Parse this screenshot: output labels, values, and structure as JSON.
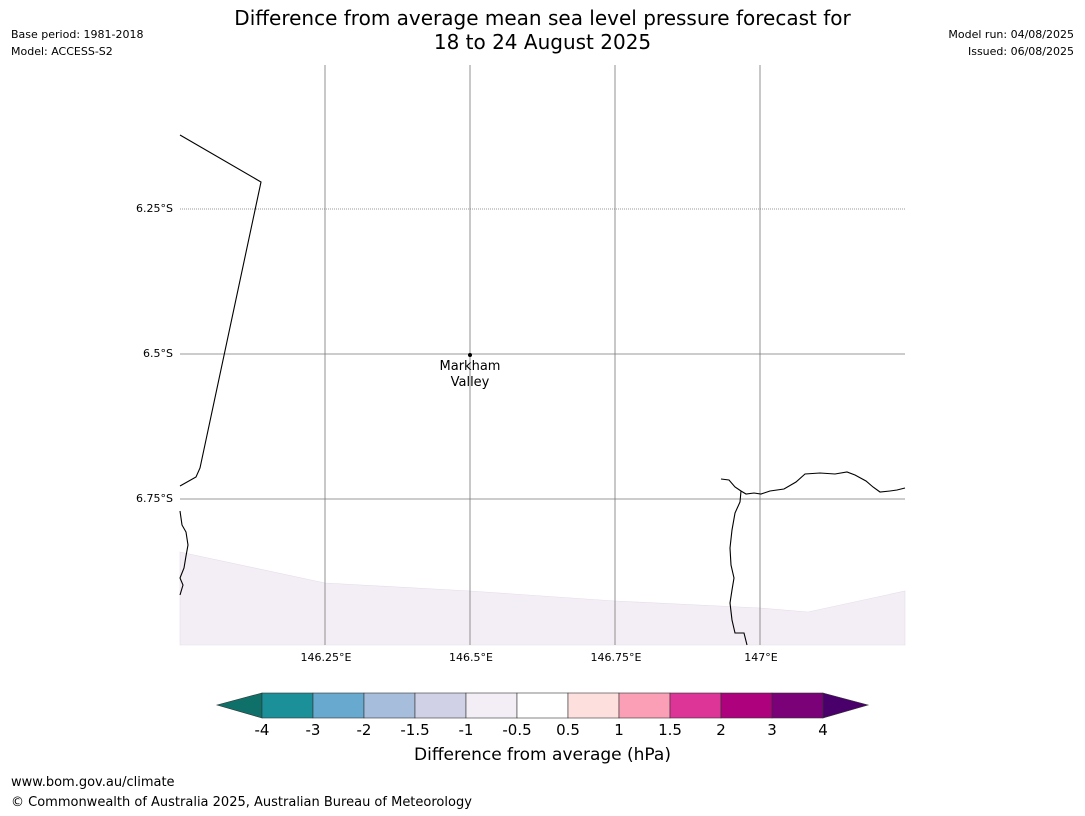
{
  "header": {
    "title_line1": "Difference from average mean sea level pressure forecast for",
    "title_line2": "18 to 24 August 2025",
    "base_period": "Base period: 1981-2018",
    "model": "Model: ACCESS-S2",
    "model_run": "Model run: 04/08/2025",
    "issued": "Issued: 06/08/2025"
  },
  "map": {
    "lat_labels": [
      "6.25°S",
      "6.5°S",
      "6.75°S"
    ],
    "lon_labels": [
      "146.25°E",
      "146.5°E",
      "146.75°E",
      "147°E"
    ],
    "place": {
      "name_line1": "Markham",
      "name_line2": "Valley"
    },
    "shaded_region_category": "-1 to -0.5",
    "shaded_region_color": "#f3eef5"
  },
  "colorbar": {
    "label": "Difference from average (hPa)",
    "ticks": [
      "-4",
      "-3",
      "-2",
      "-1.5",
      "-1",
      "-0.5",
      "0.5",
      "1",
      "1.5",
      "2",
      "3",
      "4"
    ],
    "colors": [
      "#0f7069",
      "#1b9099",
      "#67a9cf",
      "#a6bddb",
      "#d0d1e6",
      "#f3eef5",
      "#ffffff",
      "#fde0dd",
      "#fa9fb5",
      "#dd3497",
      "#ae017e",
      "#7a0177",
      "#49006a"
    ]
  },
  "footer": {
    "url": "www.bom.gov.au/climate",
    "copyright": "© Commonwealth of Australia 2025, Australian Bureau of Meteorology"
  }
}
